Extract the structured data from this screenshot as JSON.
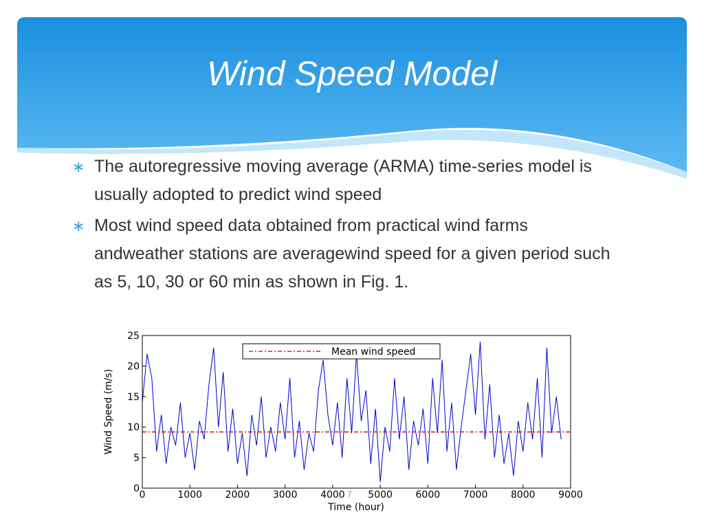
{
  "title": "Wind Speed Model",
  "bullets": [
    "The autoregressive moving average (ARMA) time-series model is usually adopted to predict wind speed",
    "Most wind speed data obtained from practical wind farms andweather stations are averagewind speed for a given period such as 5, 10, 30 or 60 min as shown in Fig. 1."
  ],
  "slide_number": "7",
  "chart_data": {
    "type": "line",
    "xlabel": "Time (hour)",
    "ylabel": "Wind Speed (m/s)",
    "x": [
      0,
      100,
      200,
      300,
      400,
      500,
      600,
      700,
      800,
      900,
      1000,
      1100,
      1200,
      1300,
      1400,
      1500,
      1600,
      1700,
      1800,
      1900,
      2000,
      2100,
      2200,
      2300,
      2400,
      2500,
      2600,
      2700,
      2800,
      2900,
      3000,
      3100,
      3200,
      3300,
      3400,
      3500,
      3600,
      3700,
      3800,
      3900,
      4000,
      4100,
      4200,
      4300,
      4400,
      4500,
      4600,
      4700,
      4800,
      4900,
      5000,
      5100,
      5200,
      5300,
      5400,
      5500,
      5600,
      5700,
      5800,
      5900,
      6000,
      6100,
      6200,
      6300,
      6400,
      6500,
      6600,
      6700,
      6800,
      6900,
      7000,
      7100,
      7200,
      7300,
      7400,
      7500,
      7600,
      7700,
      7800,
      7900,
      8000,
      8100,
      8200,
      8300,
      8400,
      8500,
      8600,
      8700,
      8800
    ],
    "values": [
      14,
      22,
      18,
      6,
      12,
      4,
      10,
      7,
      14,
      5,
      9,
      3,
      11,
      8,
      17,
      23,
      10,
      19,
      6,
      13,
      4,
      9,
      2,
      12,
      7,
      15,
      5,
      10,
      6,
      14,
      8,
      18,
      5,
      11,
      3,
      9,
      6,
      16,
      21,
      12,
      7,
      14,
      5,
      18,
      9,
      22,
      11,
      16,
      4,
      13,
      1,
      10,
      6,
      18,
      8,
      15,
      3,
      11,
      7,
      13,
      4,
      18,
      9,
      21,
      6,
      14,
      3,
      10,
      16,
      22,
      12,
      24,
      8,
      17,
      5,
      12,
      4,
      9,
      2,
      11,
      6,
      14,
      8,
      18,
      5,
      23,
      9,
      15,
      8
    ],
    "color": "#0000cc",
    "mean_line": {
      "name": "Mean wind speed",
      "value": 9.2,
      "color": "#cc0000"
    },
    "xlim": [
      0,
      9000
    ],
    "xticks": [
      0,
      1000,
      2000,
      3000,
      4000,
      5000,
      6000,
      7000,
      8000,
      9000
    ],
    "ylim": [
      0,
      25
    ],
    "yticks": [
      0,
      5,
      10,
      15,
      20,
      25
    ]
  }
}
